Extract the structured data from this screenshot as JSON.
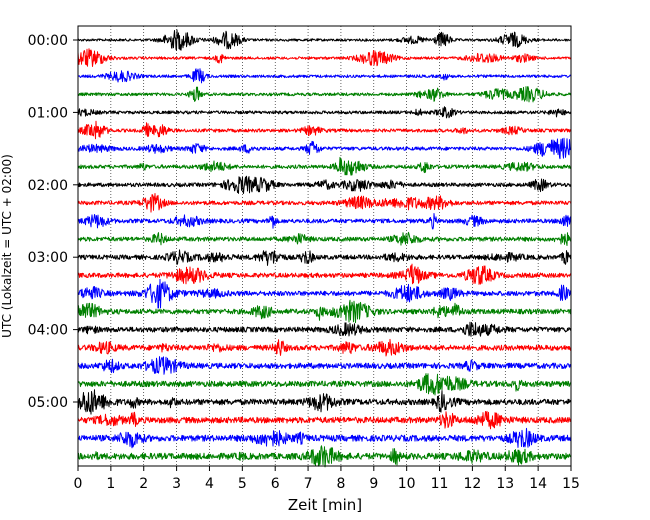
{
  "chart_data": {
    "type": "line",
    "title": "",
    "xlabel": "Zeit  [min]",
    "ylabel": "UTC (Lokalzeit = UTC + 02:00)",
    "xlim": [
      0,
      15
    ],
    "x_ticks": [
      "0",
      "1",
      "2",
      "3",
      "4",
      "5",
      "6",
      "7",
      "8",
      "9",
      "10",
      "11",
      "12",
      "13",
      "14",
      "15"
    ],
    "y_ticks": [
      "00:00",
      "01:00",
      "02:00",
      "03:00",
      "04:00",
      "05:00"
    ],
    "trace_interval_min": 15,
    "trace_colors": [
      "#000000",
      "#ff0000",
      "#0000ff",
      "#008000"
    ],
    "grid": "vertical dotted lines at each minute",
    "traces": [
      {
        "start": "00:00",
        "color": "#000000"
      },
      {
        "start": "00:15",
        "color": "#ff0000"
      },
      {
        "start": "00:30",
        "color": "#0000ff"
      },
      {
        "start": "00:45",
        "color": "#008000"
      },
      {
        "start": "01:00",
        "color": "#000000"
      },
      {
        "start": "01:15",
        "color": "#ff0000"
      },
      {
        "start": "01:30",
        "color": "#0000ff"
      },
      {
        "start": "01:45",
        "color": "#008000"
      },
      {
        "start": "02:00",
        "color": "#000000"
      },
      {
        "start": "02:15",
        "color": "#ff0000"
      },
      {
        "start": "02:30",
        "color": "#0000ff"
      },
      {
        "start": "02:45",
        "color": "#008000"
      },
      {
        "start": "03:00",
        "color": "#000000"
      },
      {
        "start": "03:15",
        "color": "#ff0000"
      },
      {
        "start": "03:30",
        "color": "#0000ff"
      },
      {
        "start": "03:45",
        "color": "#008000"
      },
      {
        "start": "04:00",
        "color": "#000000"
      },
      {
        "start": "04:15",
        "color": "#ff0000"
      },
      {
        "start": "04:30",
        "color": "#0000ff"
      },
      {
        "start": "04:45",
        "color": "#008000"
      },
      {
        "start": "05:00",
        "color": "#000000"
      },
      {
        "start": "05:15",
        "color": "#ff0000"
      },
      {
        "start": "05:30",
        "color": "#0000ff"
      },
      {
        "start": "05:45",
        "color": "#008000"
      }
    ]
  }
}
